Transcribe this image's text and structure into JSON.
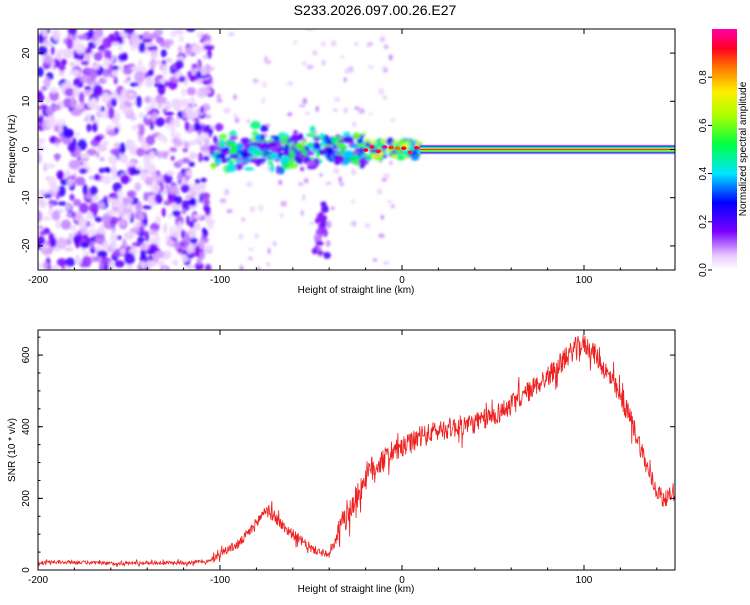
{
  "page": {
    "title": "S233.2026.097.00.26.E27"
  },
  "colors": {
    "series_line": "#ee2020",
    "axis": "#000000",
    "background": "#ffffff"
  },
  "chart_data": [
    {
      "type": "heatmap",
      "title": "S233.2026.097.00.26.E27",
      "xlabel": "Height of straight line (km)",
      "ylabel": "Frequency (Hz)",
      "xlim": [
        -200,
        150
      ],
      "ylim": [
        -25,
        25
      ],
      "x_ticks": [
        -200,
        -100,
        0,
        100
      ],
      "y_ticks": [
        -20,
        -10,
        0,
        10,
        20
      ],
      "colorbar": {
        "label": "Normalized spectral amplitude",
        "range": [
          0,
          1
        ],
        "ticks": [
          0.0,
          0.2,
          0.4,
          0.6,
          0.8
        ],
        "tick_labels": [
          "0.0",
          "0.2",
          "0.4",
          "0.6",
          "0.8"
        ],
        "colormap": "rainbow (white-violet-blue-cyan-green-yellow-red-magenta)"
      },
      "regions": [
        {
          "x_range": [
            -200,
            -105
          ],
          "description": "scattered noise",
          "freq_range": [
            -25,
            25
          ],
          "amplitude": 0.2
        },
        {
          "x_range": [
            -105,
            -20
          ],
          "description": "broadband near zero",
          "freq_range": [
            -6,
            5
          ],
          "amplitude": 0.35
        },
        {
          "x_range": [
            -20,
            10
          ],
          "description": "narrowing ridge",
          "freq_range": [
            -2,
            2
          ],
          "amplitude": 0.55
        },
        {
          "x_range": [
            10,
            150
          ],
          "description": "sharp line at 0 Hz",
          "freq_range": [
            -1,
            1
          ],
          "amplitude": 0.95
        }
      ]
    },
    {
      "type": "line",
      "xlabel": "Height of straight line (km)",
      "ylabel": "SNR (10 * v/v)",
      "xlim": [
        -200,
        150
      ],
      "ylim": [
        0,
        670
      ],
      "x_ticks": [
        -200,
        -100,
        0,
        100
      ],
      "y_ticks": [
        0,
        200,
        400,
        600
      ],
      "series": [
        {
          "name": "SNR",
          "x": [
            -200,
            -180,
            -160,
            -140,
            -120,
            -105,
            -100,
            -95,
            -90,
            -85,
            -80,
            -75,
            -70,
            -65,
            -60,
            -55,
            -50,
            -45,
            -40,
            -35,
            -30,
            -25,
            -20,
            -15,
            -10,
            -5,
            0,
            10,
            20,
            30,
            40,
            50,
            60,
            70,
            80,
            90,
            95,
            100,
            105,
            110,
            115,
            120,
            125,
            130,
            135,
            140,
            145,
            150
          ],
          "y": [
            20,
            22,
            18,
            20,
            20,
            25,
            45,
            60,
            70,
            100,
            130,
            170,
            150,
            120,
            100,
            80,
            60,
            50,
            40,
            100,
            160,
            200,
            260,
            290,
            310,
            330,
            340,
            370,
            390,
            400,
            410,
            430,
            460,
            500,
            540,
            590,
            620,
            630,
            610,
            570,
            530,
            480,
            430,
            360,
            280,
            220,
            200,
            220
          ],
          "noise": 60
        }
      ]
    }
  ]
}
